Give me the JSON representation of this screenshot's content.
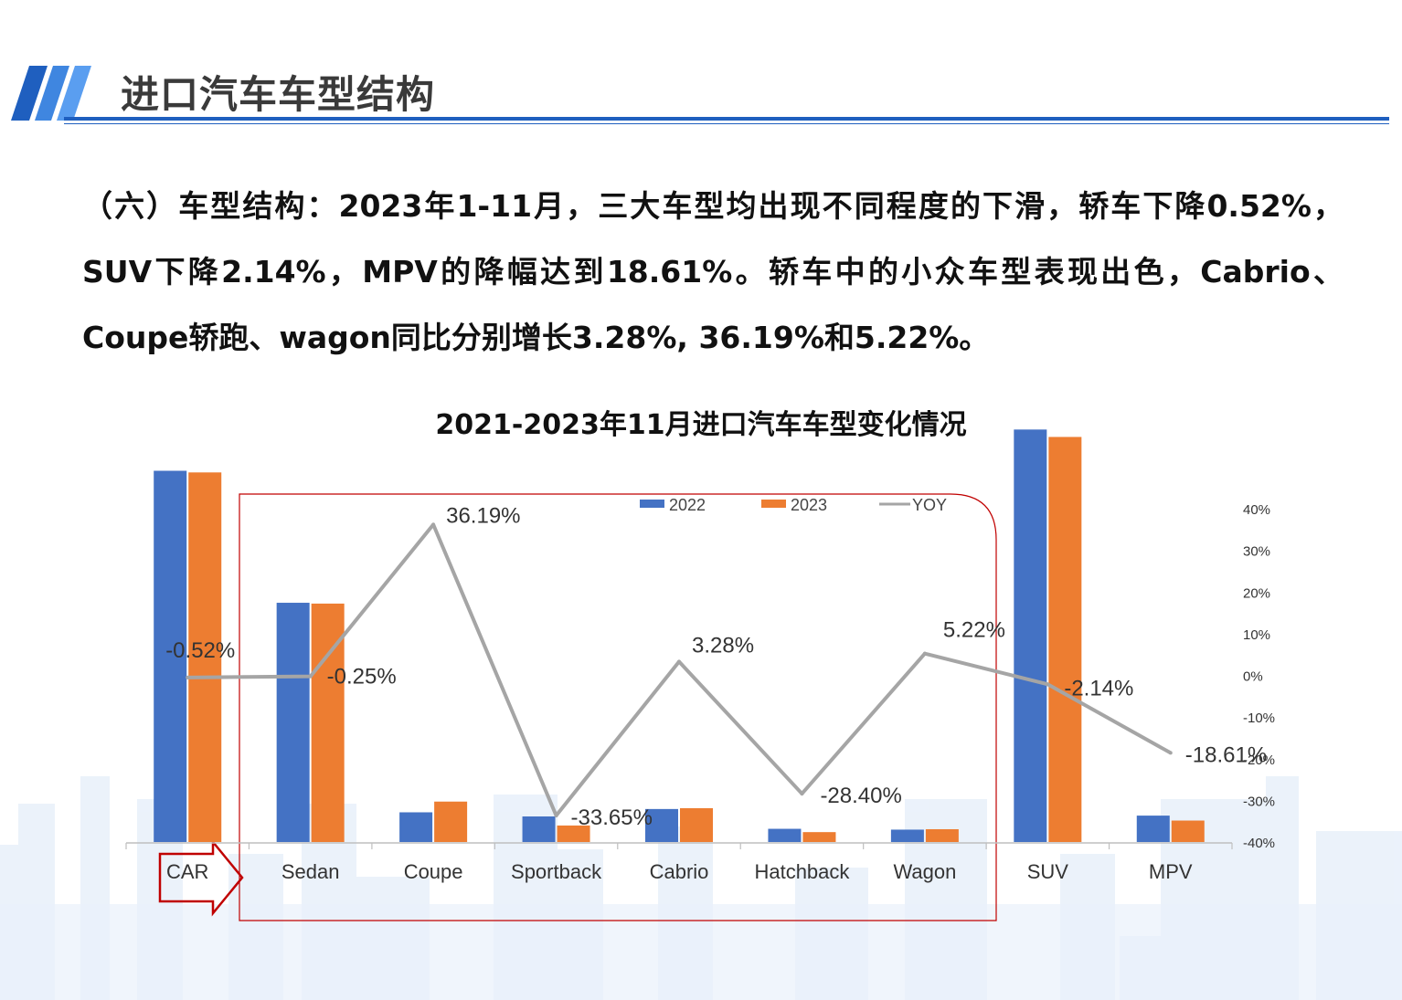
{
  "header": {
    "title": "进口汽车车型结构"
  },
  "body": {
    "paragraph": "（六）车型结构：2023年1-11月，三大车型均出现不同程度的下滑，轿车下降0.52%，SUV下降2.14%，MPV的降幅达到18.61%。轿车中的小众车型表现出色，Cabrio、Coupe轿跑、wagon同比分别增长3.28%, 36.19%和5.22%。"
  },
  "colors": {
    "accent": "#1f5fbf",
    "series_2022": "#4472c4",
    "series_2023": "#ed7d31",
    "series_yoy": "#a5a5a5",
    "highlight": "#c00000"
  },
  "chart_data": {
    "type": "bar",
    "title": "2021-2023年11月进口汽车车型变化情况",
    "categories": [
      "CAR",
      "Sedan",
      "Coupe",
      "Sportback",
      "Cabrio",
      "Hatchback",
      "Wagon",
      "SUV",
      "MPV"
    ],
    "series": [
      {
        "name": "2022",
        "type": "bar",
        "axis": "primary",
        "values": [
          45.0,
          29.0,
          3.6,
          3.1,
          4.0,
          1.6,
          1.5,
          50.0,
          3.2
        ]
      },
      {
        "name": "2023",
        "type": "bar",
        "axis": "primary",
        "values": [
          44.8,
          28.9,
          4.9,
          2.0,
          4.1,
          1.2,
          1.55,
          49.1,
          2.6
        ]
      },
      {
        "name": "YOY",
        "type": "line",
        "axis": "secondary",
        "values": [
          -0.52,
          -0.25,
          36.19,
          -33.65,
          3.28,
          -28.4,
          5.22,
          -2.14,
          -18.61
        ]
      }
    ],
    "data_labels": [
      "-0.52%",
      "-0.25%",
      "36.19%",
      "-33.65%",
      "3.28%",
      "-28.40%",
      "5.22%",
      "-2.14%",
      "-18.61%"
    ],
    "y2_ticks": [
      "40%",
      "30%",
      "20%",
      "10%",
      "0%",
      "-10%",
      "-20%",
      "-30%",
      "-40%"
    ],
    "y2lim": [
      -40,
      40
    ],
    "ylim": [
      0,
      60
    ],
    "legend": [
      "2022",
      "2023",
      "YOY"
    ],
    "legend_position": "top",
    "grid": false
  }
}
